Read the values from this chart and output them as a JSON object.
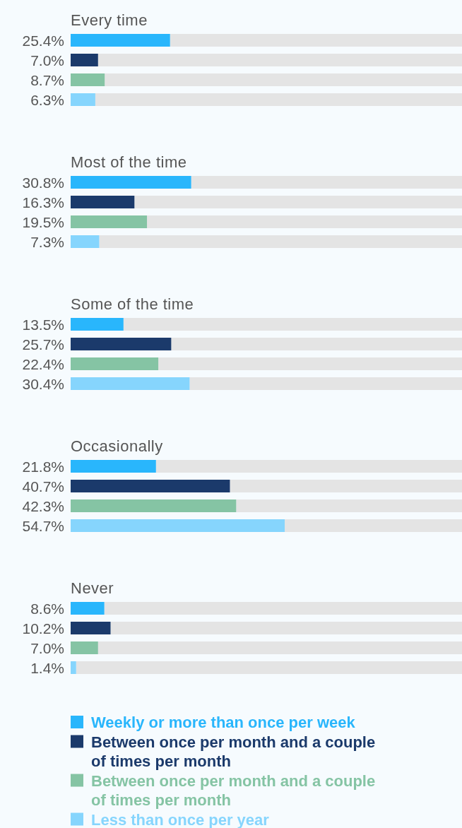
{
  "chart_data": {
    "type": "bar",
    "orientation": "horizontal",
    "categories": [
      "Every time",
      "Most of the time",
      "Some of the time",
      "Occasionally",
      "Never"
    ],
    "xlim": [
      0,
      100
    ],
    "legend": "bottom",
    "series": [
      {
        "name": "Weekly or more than once per week",
        "color": "#29b6fc",
        "values": [
          25.4,
          30.8,
          13.5,
          21.8,
          8.6
        ],
        "value_labels": [
          "25.4%",
          "30.8%",
          "13.5%",
          "21.8%",
          "8.6%"
        ]
      },
      {
        "name": "Between once per month and a couple of times per month",
        "color": "#1b3a6b",
        "values": [
          7.0,
          16.3,
          25.7,
          40.7,
          10.2
        ],
        "value_labels": [
          "7.0%",
          "16.3%",
          "25.7%",
          "40.7%",
          "10.2%"
        ]
      },
      {
        "name": "Between once per month and a couple of times per month",
        "color": "#85c4a4",
        "values": [
          8.7,
          19.5,
          22.4,
          42.3,
          7.0
        ],
        "value_labels": [
          "8.7%",
          "19.5%",
          "22.4%",
          "42.3%",
          "7.0%"
        ]
      },
      {
        "name": "Less than once per year",
        "color": "#86d5fd",
        "values": [
          6.3,
          7.3,
          30.4,
          54.7,
          1.4
        ],
        "value_labels": [
          "6.3%",
          "7.3%",
          "30.4%",
          "54.7%",
          "1.4%"
        ]
      }
    ]
  }
}
